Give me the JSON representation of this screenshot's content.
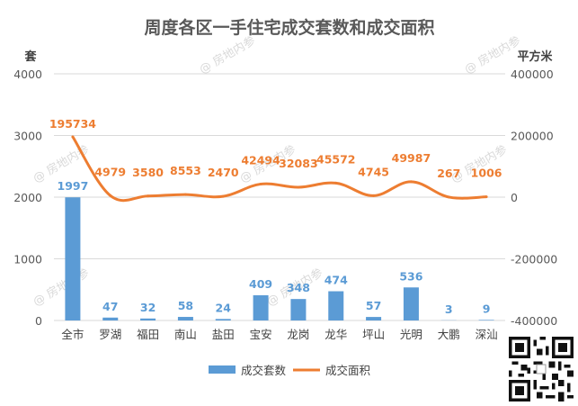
{
  "chart_data": {
    "type": "bar-line",
    "title": "周度各区一手住宅成交套数和成交面积",
    "categories": [
      "全市",
      "罗湖",
      "福田",
      "南山",
      "盐田",
      "宝安",
      "龙岗",
      "龙华",
      "坪山",
      "光明",
      "大鹏",
      "深汕"
    ],
    "left_axis": {
      "unit_label": "套",
      "ylim": [
        0,
        4000
      ],
      "ticks": [
        "0",
        "1000",
        "2000",
        "3000",
        "4000"
      ]
    },
    "right_axis": {
      "unit_label": "平方米",
      "ylim": [
        -400000,
        400000
      ],
      "ticks": [
        "-400000",
        "-200000",
        "0",
        "200000",
        "400000"
      ]
    },
    "series": [
      {
        "name": "成交套数",
        "kind": "bar",
        "axis": "left",
        "color": "#5b9bd5",
        "values": [
          1997,
          47,
          32,
          58,
          24,
          409,
          348,
          474,
          57,
          536,
          3,
          9
        ],
        "labels": [
          "1997",
          "47",
          "32",
          "58",
          "24",
          "409",
          "348",
          "474",
          "57",
          "536",
          "3",
          "9"
        ]
      },
      {
        "name": "成交面积",
        "kind": "line",
        "axis": "right",
        "color": "#ed7d31",
        "values": [
          195734,
          4979,
          3580,
          8553,
          2470,
          42494,
          32083,
          45572,
          4745,
          49987,
          267,
          1006
        ],
        "labels": [
          "195734",
          "4979",
          "3580",
          "8553",
          "2470",
          "42494",
          "32083",
          "45572",
          "4745",
          "49987",
          "267",
          "1006"
        ]
      }
    ],
    "legend_position": "bottom",
    "grid": true,
    "watermark": "@ 房地内参"
  }
}
